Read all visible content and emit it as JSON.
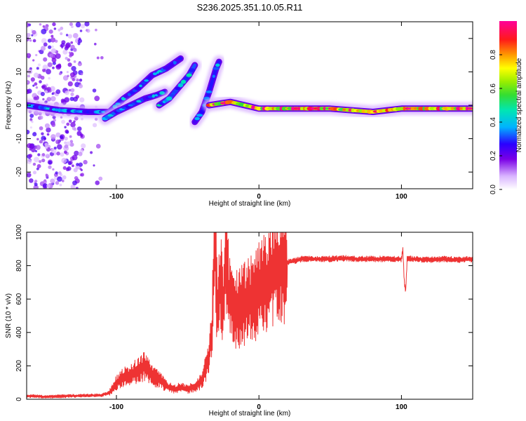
{
  "title": "S236.2025.351.10.05.R11",
  "chart_data": [
    {
      "type": "heatmap",
      "name": "spectrogram",
      "xlabel": "Height of straight line (km)",
      "ylabel": "Frequency (Hz)",
      "xlim": [
        -163,
        150
      ],
      "ylim": [
        -25,
        25
      ],
      "xticks": [
        -100,
        0,
        100
      ],
      "xtick_labels": [
        "-100",
        "0",
        "100"
      ],
      "yticks": [
        20,
        10,
        0,
        -10,
        -20
      ],
      "ytick_labels": [
        "20",
        "10",
        "0",
        "-10",
        "-20"
      ],
      "colorbar": {
        "label": "Normalized spectral amplitude",
        "range": [
          0,
          1
        ],
        "ticks": [
          0.0,
          0.2,
          0.4,
          0.6,
          0.8
        ],
        "tick_labels": [
          "0.0",
          "0.2",
          "0.4",
          "0.6",
          "0.8"
        ]
      },
      "features": [
        {
          "name": "noise-region",
          "x_range": [
            -163,
            -110
          ],
          "freq_range": [
            -25,
            25
          ],
          "amplitude": 0.2
        },
        {
          "name": "curve-1",
          "points": [
            [
              -163,
              0
            ],
            [
              -140,
              -1.5
            ],
            [
              -120,
              -2
            ],
            [
              -105,
              -2
            ],
            [
              -95,
              2
            ],
            [
              -85,
              5
            ],
            [
              -75,
              9
            ],
            [
              -65,
              11
            ],
            [
              -55,
              14
            ]
          ],
          "amplitude": 0.4
        },
        {
          "name": "curve-2",
          "points": [
            [
              -108,
              -4
            ],
            [
              -100,
              -2
            ],
            [
              -90,
              0
            ],
            [
              -80,
              2
            ],
            [
              -72,
              3
            ],
            [
              -66,
              4
            ]
          ],
          "amplitude": 0.4
        },
        {
          "name": "curve-3",
          "points": [
            [
              -70,
              0
            ],
            [
              -63,
              2
            ],
            [
              -55,
              6
            ],
            [
              -49,
              9
            ],
            [
              -45,
              12
            ]
          ],
          "amplitude": 0.45
        },
        {
          "name": "curve-4",
          "points": [
            [
              -45,
              -5
            ],
            [
              -40,
              -2
            ],
            [
              -35,
              4
            ],
            [
              -30,
              11
            ],
            [
              -28,
              13
            ]
          ],
          "amplitude": 0.4
        },
        {
          "name": "carrier",
          "points": [
            [
              -35,
              0
            ],
            [
              -20,
              1
            ],
            [
              0,
              -1
            ],
            [
              50,
              -1
            ],
            [
              80,
              -2
            ],
            [
              100,
              -1
            ],
            [
              150,
              -1
            ]
          ],
          "amplitude": 0.95
        }
      ]
    },
    {
      "type": "line",
      "name": "snr",
      "xlabel": "Height of straight line (km)",
      "ylabel": "SNR (10 * v/v)",
      "xlim": [
        -163,
        150
      ],
      "ylim": [
        0,
        1000
      ],
      "xticks": [
        -100,
        0,
        100
      ],
      "xtick_labels": [
        "-100",
        "0",
        "100"
      ],
      "yticks": [
        0,
        200,
        400,
        600,
        800,
        1000
      ],
      "ytick_labels": [
        "0",
        "200",
        "400",
        "600",
        "800",
        "1000"
      ],
      "color": "#ee3333",
      "series": [
        {
          "name": "SNR",
          "x": [
            -163,
            -150,
            -140,
            -130,
            -120,
            -110,
            -105,
            -100,
            -95,
            -90,
            -85,
            -80,
            -75,
            -70,
            -65,
            -60,
            -55,
            -50,
            -45,
            -40,
            -35,
            -33,
            -31,
            -29,
            -27,
            -25,
            -23,
            -21,
            -19,
            -17,
            -15,
            -12,
            -9,
            -6,
            -3,
            0,
            3,
            6,
            10,
            15,
            20,
            25,
            30,
            40,
            50,
            60,
            70,
            80,
            90,
            100,
            101,
            102,
            103,
            104,
            110,
            120,
            130,
            140,
            150
          ],
          "y": [
            20,
            15,
            18,
            20,
            22,
            25,
            40,
            100,
            130,
            150,
            170,
            200,
            140,
            120,
            80,
            60,
            70,
            60,
            80,
            110,
            250,
            400,
            960,
            500,
            700,
            550,
            960,
            600,
            580,
            520,
            540,
            560,
            580,
            600,
            620,
            650,
            680,
            700,
            760,
            790,
            820,
            830,
            840,
            840,
            840,
            845,
            840,
            840,
            840,
            840,
            900,
            700,
            650,
            840,
            840,
            835,
            840,
            835,
            840
          ]
        }
      ]
    }
  ]
}
